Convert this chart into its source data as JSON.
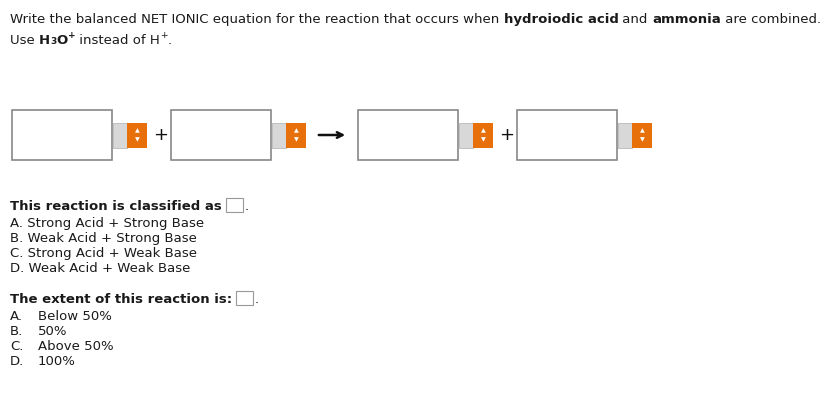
{
  "title_normal1": "Write the balanced NET IONIC equation for the reaction that occurs when ",
  "title_bold1": "hydroiodic acid",
  "title_normal2": " and ",
  "title_bold2": "ammonia",
  "title_normal3": " are combined.",
  "section3_options": [
    "A. Strong Acid + Strong Base",
    "B. Weak Acid + Strong Base",
    "C. Strong Acid + Weak Base",
    "D. Weak Acid + Weak Base"
  ],
  "section4_options": [
    [
      "A.",
      "Below 50%"
    ],
    [
      "B.",
      "50%"
    ],
    [
      "C.",
      "Above 50%"
    ],
    [
      "D.",
      "100%"
    ]
  ],
  "bg_color": "#ffffff",
  "spinner_color": "#e8700a",
  "text_color": "#1a1a1a",
  "box_edge_color": "#777777",
  "small_connector_color": "#cccccc",
  "arrow_color": "#111111"
}
